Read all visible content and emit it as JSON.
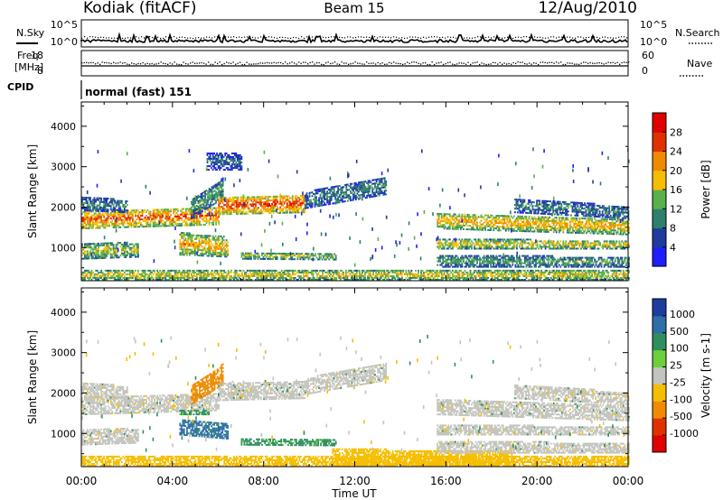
{
  "header": {
    "station": "Kodiak (fitACF)",
    "beam": "Beam 15",
    "date": "12/Aug/2010"
  },
  "housekeeping": {
    "nsky_label": "N.Sky",
    "nsearch_label": "N.Search",
    "noise_ticks": [
      "10^5",
      "10^0"
    ],
    "freq_label_line1": "Freq.",
    "freq_label_line2": "[MHz]",
    "freq_ticks": [
      "18",
      "8"
    ],
    "nave_label": "Nave",
    "nave_ticks": [
      "60",
      "0"
    ],
    "cpid_label": "CPID",
    "cpid_value": "normal (fast) 151"
  },
  "chart_data": [
    {
      "type": "heatmap",
      "title": "",
      "xlabel": "Time UT",
      "ylabel": "Slant Range [km]",
      "xlim": [
        0,
        24
      ],
      "ylim": [
        180,
        4600
      ],
      "yticks": [
        1000,
        2000,
        3000,
        4000
      ],
      "colorbar_label": "Power [dB]",
      "colorbar_ticks": [
        4,
        8,
        12,
        16,
        20,
        24,
        28
      ],
      "colorbar_range": [
        0,
        32
      ],
      "colorbar_colors": [
        "#1e1eff",
        "#1e3c9e",
        "#2e7f6e",
        "#5ab04a",
        "#f5be00",
        "#f08a00",
        "#e03000",
        "#e00000"
      ],
      "ground_scatter_color": "#c4c4be",
      "bands": [
        {
          "t0": 0.0,
          "t1": 6.0,
          "r0": 1450,
          "r1": 1900,
          "r0b": 1550,
          "r1b": 2000,
          "level": 24
        },
        {
          "t0": 0.0,
          "t1": 2.0,
          "r0": 1900,
          "r1": 2250,
          "r0b": 1850,
          "r1b": 2150,
          "level": 10
        },
        {
          "t0": 4.8,
          "t1": 6.2,
          "r0": 1700,
          "r1": 2150,
          "r0b": 2200,
          "r1b": 2700,
          "level": 12
        },
        {
          "t0": 6.0,
          "t1": 9.8,
          "r0": 1800,
          "r1": 2250,
          "r0b": 1850,
          "r1b": 2300,
          "level": 26
        },
        {
          "t0": 9.8,
          "t1": 13.4,
          "r0": 1950,
          "r1": 2350,
          "r0b": 2300,
          "r1b": 2750,
          "level": 10
        },
        {
          "t0": 4.3,
          "t1": 6.4,
          "r0": 800,
          "r1": 1350,
          "r0b": 750,
          "r1b": 1250,
          "level": 20
        },
        {
          "t0": 0.0,
          "t1": 2.5,
          "r0": 700,
          "r1": 1100,
          "r0b": 750,
          "r1b": 1100,
          "level": 16
        },
        {
          "t0": 7.0,
          "t1": 11.2,
          "r0": 700,
          "r1": 880,
          "r0b": 680,
          "r1b": 830,
          "level": 16
        },
        {
          "t0": 0.0,
          "t1": 24.0,
          "r0": 180,
          "r1": 420,
          "r0b": 180,
          "r1b": 420,
          "level": 18
        },
        {
          "t0": 15.6,
          "t1": 24.0,
          "r0": 1450,
          "r1": 1850,
          "r0b": 1300,
          "r1b": 1700,
          "level": 20
        },
        {
          "t0": 15.6,
          "t1": 24.0,
          "r0": 950,
          "r1": 1200,
          "r0b": 950,
          "r1b": 1150,
          "level": 18
        },
        {
          "t0": 15.6,
          "t1": 24.0,
          "r0": 500,
          "r1": 800,
          "r0b": 500,
          "r1b": 750,
          "level": 12
        },
        {
          "t0": 19.0,
          "t1": 24.0,
          "r0": 1850,
          "r1": 2200,
          "r0b": 1700,
          "r1b": 2000,
          "level": 10
        },
        {
          "t0": 5.5,
          "t1": 7.0,
          "r0": 2900,
          "r1": 3350,
          "r0b": 2900,
          "r1b": 3300,
          "level": 8
        }
      ]
    },
    {
      "type": "heatmap",
      "title": "",
      "xlabel": "Time UT",
      "ylabel": "Slant Range [km]",
      "xlim": [
        0,
        24
      ],
      "ylim": [
        180,
        4600
      ],
      "yticks": [
        1000,
        2000,
        3000,
        4000
      ],
      "xticks": [
        "00:00",
        "04:00",
        "08:00",
        "12:00",
        "16:00",
        "20:00",
        "00:00"
      ],
      "colorbar_label": "Velocity [m s-1]",
      "colorbar_ticks": [
        "1000",
        "500",
        "100",
        "25",
        "-25",
        "-100",
        "-500",
        "-1000"
      ],
      "colorbar_colors": [
        "#1e3c9e",
        "#2e6eaa",
        "#2e8f5e",
        "#6ecf3c",
        "#c4c4be",
        "#f5be00",
        "#f08a00",
        "#e03000",
        "#e00000"
      ],
      "bands": [
        {
          "t0": 0.0,
          "t1": 6.0,
          "r0": 1450,
          "r1": 1900,
          "r0b": 1550,
          "r1b": 2000,
          "v": 0
        },
        {
          "t0": 0.0,
          "t1": 2.0,
          "r0": 1900,
          "r1": 2250,
          "r0b": 1850,
          "r1b": 2150,
          "v": 0
        },
        {
          "t0": 4.8,
          "t1": 6.2,
          "r0": 1700,
          "r1": 2150,
          "r0b": 2200,
          "r1b": 2700,
          "v": -300
        },
        {
          "t0": 6.0,
          "t1": 9.8,
          "r0": 1800,
          "r1": 2250,
          "r0b": 1850,
          "r1b": 2300,
          "v": 0
        },
        {
          "t0": 9.8,
          "t1": 13.4,
          "r0": 1950,
          "r1": 2350,
          "r0b": 2300,
          "r1b": 2750,
          "v": 0
        },
        {
          "t0": 4.3,
          "t1": 6.4,
          "r0": 950,
          "r1": 1350,
          "r0b": 850,
          "r1b": 1250,
          "v": 300
        },
        {
          "t0": 4.3,
          "t1": 5.6,
          "r0": 1450,
          "r1": 1550,
          "r0b": 1450,
          "r1b": 1550,
          "v": 80
        },
        {
          "t0": 0.0,
          "t1": 2.5,
          "r0": 700,
          "r1": 1100,
          "r0b": 750,
          "r1b": 1100,
          "v": 0
        },
        {
          "t0": 7.0,
          "t1": 11.2,
          "r0": 700,
          "r1": 880,
          "r0b": 680,
          "r1b": 830,
          "v": 80
        },
        {
          "t0": 0.0,
          "t1": 24.0,
          "r0": 180,
          "r1": 420,
          "r0b": 180,
          "r1b": 420,
          "v": -60
        },
        {
          "t0": 11.0,
          "t1": 19.0,
          "r0": 180,
          "r1": 600,
          "r0b": 180,
          "r1b": 550,
          "v": -60
        },
        {
          "t0": 15.6,
          "t1": 24.0,
          "r0": 1450,
          "r1": 1850,
          "r0b": 1300,
          "r1b": 1700,
          "v": 0
        },
        {
          "t0": 15.6,
          "t1": 24.0,
          "r0": 950,
          "r1": 1200,
          "r0b": 950,
          "r1b": 1150,
          "v": 0
        },
        {
          "t0": 15.6,
          "t1": 24.0,
          "r0": 500,
          "r1": 800,
          "r0b": 500,
          "r1b": 750,
          "v": 0
        },
        {
          "t0": 19.0,
          "t1": 24.0,
          "r0": 1850,
          "r1": 2200,
          "r0b": 1700,
          "r1b": 2000,
          "v": 0
        }
      ]
    }
  ]
}
